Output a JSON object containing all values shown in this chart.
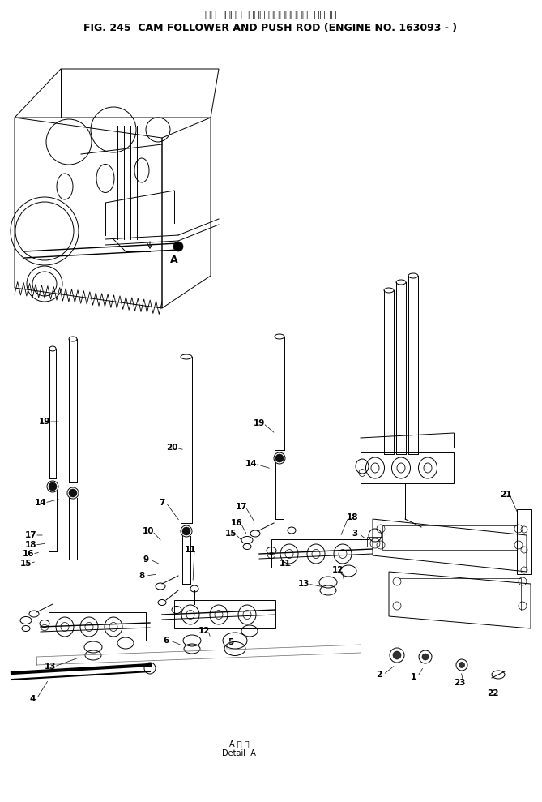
{
  "title_japanese": "カム フォロワ  および プッシュロッド  適用号機",
  "title_english": "FIG. 245  CAM FOLLOWER AND PUSH ROD (ENGINE NO. 163093 - )",
  "bottom_label_line1": "A 詳 細",
  "bottom_label_line2": "Detail  A",
  "bg_color": "#ffffff",
  "lc": "#000000",
  "fig_w": 6.69,
  "fig_h": 9.89,
  "dpi": 100
}
